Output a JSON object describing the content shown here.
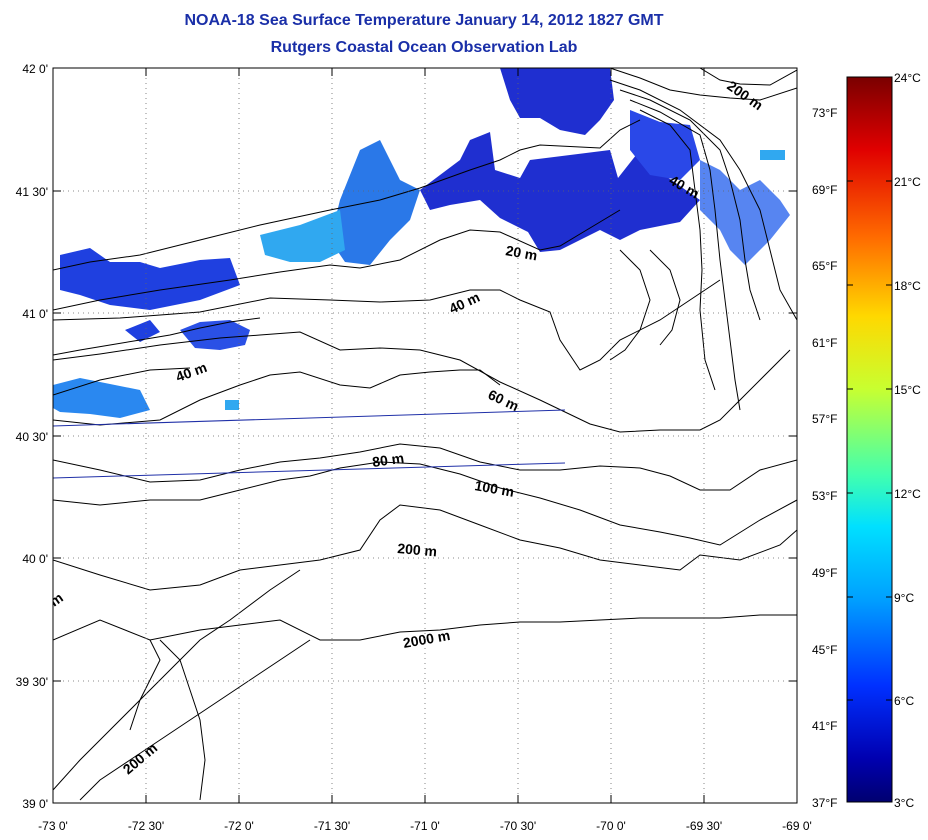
{
  "title": {
    "line1": "NOAA-18 Sea Surface Temperature January 14, 2012 1827 GMT",
    "line2": "Rutgers Coastal Ocean Observation Lab"
  },
  "axes": {
    "lat_labels": [
      "42 0'",
      "41 30'",
      "41 0'",
      "40 30'",
      "40 0'",
      "39 30'",
      "39 0'"
    ],
    "lon_labels": [
      "-73 0'",
      "-72 30'",
      "-72 0'",
      "-71 30'",
      "-71 0'",
      "-70 30'",
      "-70 0'",
      "-69 30'",
      "-69 0'"
    ]
  },
  "contours": {
    "labels": [
      "200 m",
      "40 m",
      "20 m",
      "40 m",
      "40 m",
      "60 m",
      "80 m",
      "100 m",
      "200 m",
      "2000 m",
      "200 m",
      "m"
    ]
  },
  "colorbar": {
    "celsius": [
      "24°C",
      "21°C",
      "18°C",
      "15°C",
      "12°C",
      "9°C",
      "6°C",
      "3°C"
    ],
    "fahrenheit": [
      "73°F",
      "69°F",
      "65°F",
      "61°F",
      "57°F",
      "53°F",
      "49°F",
      "45°F",
      "41°F",
      "37°F"
    ],
    "colors": [
      "#800000",
      "#e00000",
      "#ff6a00",
      "#ffd800",
      "#c8ff30",
      "#40ffb0",
      "#00e0ff",
      "#00a0ff",
      "#0030ff",
      "#0000b0",
      "#000080"
    ]
  },
  "colors": {
    "title": "#1a2fa8",
    "sst_dark": "#1f2fd0",
    "sst_mid": "#2a60e8",
    "sst_light": "#30a8f0"
  }
}
